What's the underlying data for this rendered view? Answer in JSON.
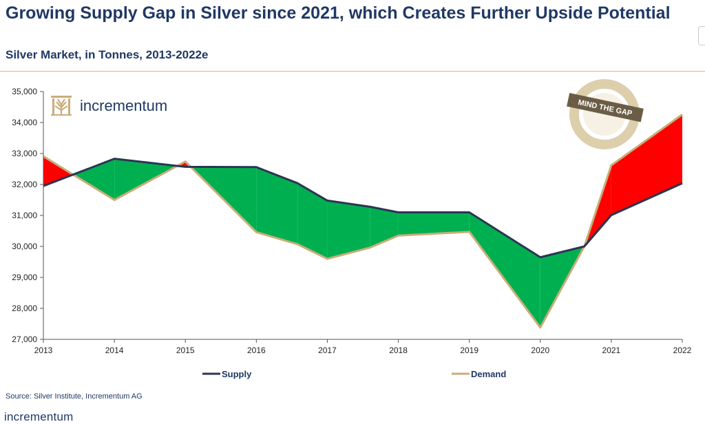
{
  "title": "Growing Supply Gap in Silver since 2021, which Creates Further Upside Potential",
  "subtitle": "Silver Market, in Tonnes, 2013-2022e",
  "source": "Source: Silver Institute, Incrementum AG",
  "brand": "incrementum",
  "badge_text": "MIND THE GAP",
  "colors": {
    "supply": "#2b3553",
    "demand": "#c9ad7a",
    "surplus_fill": "#00b050",
    "deficit_fill": "#ff0000",
    "text": "#1f3864"
  },
  "chart_data": {
    "type": "area",
    "title": "Silver Market, in Tonnes, 2013-2022e",
    "xlabel": "",
    "ylabel": "",
    "x_ticks": [
      "2013",
      "2014",
      "2015",
      "2016",
      "2017",
      "2018",
      "2019",
      "2020",
      "2021",
      "2022"
    ],
    "y_ticks": [
      "35,000",
      "34,000",
      "33,000",
      "32,000",
      "31,000",
      "30,000",
      "29,000",
      "28,000",
      "27,000"
    ],
    "ylim": [
      27000,
      35000
    ],
    "xlim": [
      2013,
      2022
    ],
    "grid": false,
    "legend_position": "bottom",
    "series": [
      {
        "name": "Supply",
        "points": [
          [
            2013,
            31950
          ],
          [
            2014,
            32830
          ],
          [
            2015,
            32570
          ],
          [
            2016,
            32560
          ],
          [
            2016.58,
            32040
          ],
          [
            2017,
            31480
          ],
          [
            2017.6,
            31280
          ],
          [
            2018,
            31100
          ],
          [
            2019,
            31100
          ],
          [
            2020,
            29650
          ],
          [
            2020.62,
            30000
          ],
          [
            2021,
            31010
          ],
          [
            2022,
            32040
          ]
        ]
      },
      {
        "name": "Demand",
        "points": [
          [
            2013,
            32910
          ],
          [
            2014,
            31500
          ],
          [
            2015,
            32740
          ],
          [
            2016,
            30460
          ],
          [
            2016.58,
            30070
          ],
          [
            2017,
            29600
          ],
          [
            2017.6,
            29960
          ],
          [
            2018,
            30350
          ],
          [
            2019,
            30470
          ],
          [
            2020,
            27380
          ],
          [
            2020.62,
            30000
          ],
          [
            2021,
            32620
          ],
          [
            2022,
            34260
          ]
        ]
      }
    ]
  }
}
